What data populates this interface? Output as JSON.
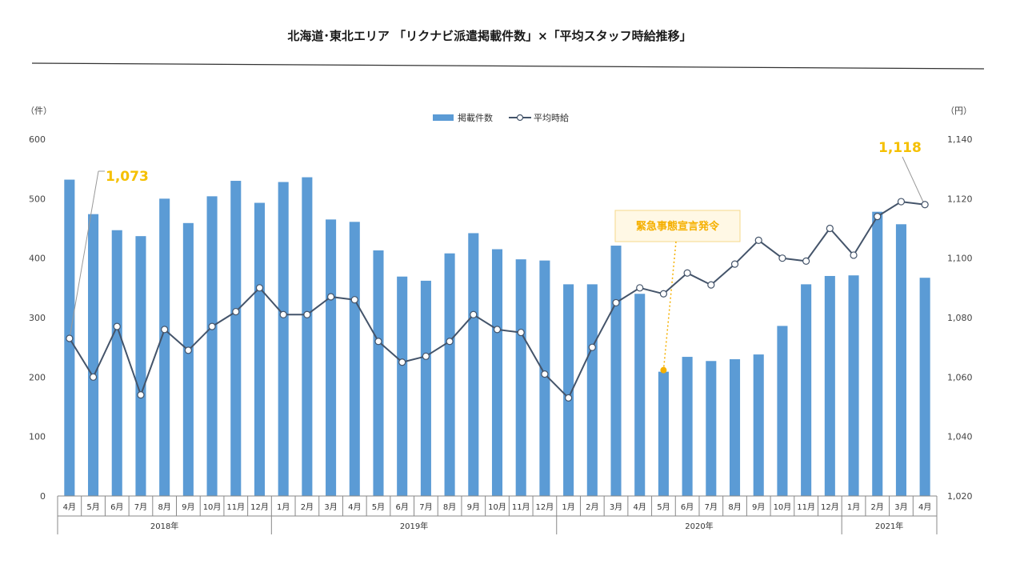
{
  "chart_data": {
    "type": "bar+line",
    "title": "北海道･東北エリア 「リクナビ派遣掲載件数」×「平均スタッフ時給推移」",
    "y_left_unit": "（件）",
    "y_right_unit": "（円）",
    "y_left_range": [
      0,
      600
    ],
    "y_left_ticks": [
      "0",
      "100",
      "200",
      "300",
      "400",
      "500",
      "600"
    ],
    "y_right_range": [
      1020,
      1140
    ],
    "y_right_ticks": [
      "1,020",
      "1,040",
      "1,060",
      "1,080",
      "1,100",
      "1,120",
      "1,140"
    ],
    "grid": false,
    "legend_position": "top-center",
    "categories": [
      "4月",
      "5月",
      "6月",
      "7月",
      "8月",
      "9月",
      "10月",
      "11月",
      "12月",
      "1月",
      "2月",
      "3月",
      "4月",
      "5月",
      "6月",
      "7月",
      "8月",
      "9月",
      "10月",
      "11月",
      "12月",
      "1月",
      "2月",
      "3月",
      "4月",
      "5月",
      "6月",
      "7月",
      "8月",
      "9月",
      "10月",
      "11月",
      "12月",
      "1月",
      "2月",
      "3月",
      "4月"
    ],
    "year_groups": [
      {
        "label": "2018年",
        "start": 0,
        "count": 9
      },
      {
        "label": "2019年",
        "start": 9,
        "count": 12
      },
      {
        "label": "2020年",
        "start": 21,
        "count": 12
      },
      {
        "label": "2021年",
        "start": 33,
        "count": 4
      }
    ],
    "series": [
      {
        "name": "掲載件数",
        "type": "bar",
        "axis": "left",
        "color": "#5b9bd5",
        "values": [
          532,
          474,
          447,
          437,
          500,
          459,
          504,
          530,
          493,
          528,
          536,
          465,
          461,
          413,
          369,
          362,
          408,
          442,
          415,
          398,
          396,
          356,
          356,
          421,
          340,
          209,
          234,
          227,
          230,
          238,
          286,
          356,
          370,
          371,
          478,
          457,
          367
        ]
      },
      {
        "name": "平均時給",
        "type": "line",
        "axis": "right",
        "color": "#44546a",
        "values": [
          1073,
          1060,
          1077,
          1054,
          1076,
          1069,
          1077,
          1082,
          1090,
          1081,
          1081,
          1087,
          1086,
          1072,
          1065,
          1067,
          1072,
          1081,
          1076,
          1075,
          1061,
          1053,
          1070,
          1085,
          1090,
          1088,
          1095,
          1091,
          1098,
          1106,
          1100,
          1099,
          1110,
          1101,
          1114,
          1119,
          1118
        ]
      }
    ],
    "annotations": [
      {
        "text": "1,073",
        "points_to": 0,
        "color": "#f5c000"
      },
      {
        "text": "1,118",
        "points_to": 36,
        "color": "#f5c000"
      },
      {
        "text": "緊急事態宣言発令",
        "points_to": 25,
        "color": "#f5b000",
        "background": "#fff8e5"
      }
    ]
  }
}
